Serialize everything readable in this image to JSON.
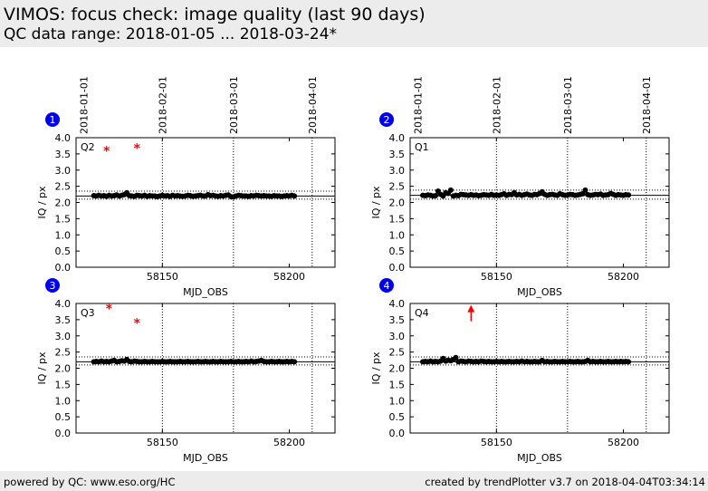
{
  "header": {
    "title": "VIMOS: focus check: image quality (last 90 days)",
    "subtitle": "QC data range: 2018-01-05 ... 2018-03-24*"
  },
  "footer": {
    "left": "powered by QC: www.eso.org/HC",
    "right": "created by trendPlotter v3.7 on 2018-04-04T03:34:14"
  },
  "colors": {
    "points": "#000000",
    "outliers": "#ff0000",
    "badge": "#0000ee",
    "background": "#ececec"
  },
  "chart_data": [
    {
      "type": "scatter",
      "badge": "1",
      "quadrant": "Q2",
      "xlabel": "MJD_OBS",
      "ylabel": "IQ / px",
      "xlim": [
        58116,
        58218
      ],
      "ylim": [
        0.0,
        4.0
      ],
      "xticks": [
        58150,
        58200
      ],
      "yticks": [
        "0.0",
        "0.5",
        "1.0",
        "1.5",
        "2.0",
        "2.5",
        "3.0",
        "3.5",
        "4.0"
      ],
      "date_ticks": [
        {
          "label": "2018-01-01",
          "mjd": 58119
        },
        {
          "label": "2018-02-01",
          "mjd": 58150
        },
        {
          "label": "2018-03-01",
          "mjd": 58178
        },
        {
          "label": "2018-04-01",
          "mjd": 58209
        }
      ],
      "date_lines": [
        58150,
        58178,
        58209
      ],
      "median": 2.2,
      "band": [
        2.1,
        2.35
      ],
      "show_upper_band": true,
      "series": [
        {
          "x": [
            58123,
            58124,
            58125,
            58126,
            58127,
            58128,
            58129,
            58130,
            58131,
            58132,
            58133,
            58134,
            58135,
            58136,
            58137,
            58138,
            58139,
            58140,
            58141,
            58142,
            58143,
            58144,
            58145,
            58146,
            58147,
            58148,
            58149,
            58150,
            58151,
            58152,
            58153,
            58154,
            58155,
            58156,
            58157,
            58158,
            58159,
            58160,
            58161,
            58162,
            58163,
            58164,
            58165,
            58166,
            58167,
            58168,
            58169,
            58170,
            58171,
            58172,
            58173,
            58174,
            58175,
            58176,
            58177,
            58178,
            58179,
            58180,
            58181,
            58182,
            58183,
            58184,
            58185,
            58186,
            58187,
            58188,
            58189,
            58190,
            58191,
            58192,
            58193,
            58194,
            58195,
            58196,
            58197,
            58198,
            58199,
            58200,
            58201,
            58202
          ],
          "y": [
            2.21,
            2.2,
            2.22,
            2.2,
            2.21,
            2.19,
            2.22,
            2.2,
            2.21,
            2.23,
            2.2,
            2.22,
            2.24,
            2.3,
            2.21,
            2.2,
            2.19,
            2.22,
            2.21,
            2.2,
            2.22,
            2.19,
            2.21,
            2.2,
            2.2,
            2.18,
            2.2,
            2.22,
            2.2,
            2.21,
            2.19,
            2.22,
            2.2,
            2.21,
            2.2,
            2.19,
            2.2,
            2.22,
            2.21,
            2.19,
            2.2,
            2.21,
            2.22,
            2.2,
            2.2,
            2.24,
            2.21,
            2.22,
            2.2,
            2.19,
            2.21,
            2.2,
            2.22,
            2.23,
            2.18,
            2.17,
            2.2,
            2.22,
            2.21,
            2.2,
            2.2,
            2.19,
            2.21,
            2.2,
            2.22,
            2.21,
            2.2,
            2.21,
            2.2,
            2.2,
            2.19,
            2.21,
            2.2,
            2.2,
            2.19,
            2.2,
            2.21,
            2.2,
            2.22,
            2.2
          ]
        }
      ],
      "outliers": [
        {
          "x": 58128,
          "y": 3.62
        },
        {
          "x": 58140,
          "y": 3.7
        }
      ],
      "arrows": []
    },
    {
      "type": "scatter",
      "badge": "2",
      "quadrant": "Q1",
      "xlabel": "MJD_OBS",
      "ylabel": "IQ / px",
      "xlim": [
        58116,
        58218
      ],
      "ylim": [
        0.0,
        4.0
      ],
      "xticks": [
        58150,
        58200
      ],
      "yticks": [
        "0.0",
        "0.5",
        "1.0",
        "1.5",
        "2.0",
        "2.5",
        "3.0",
        "3.5",
        "4.0"
      ],
      "date_ticks": [
        {
          "label": "2018-01-01",
          "mjd": 58119
        },
        {
          "label": "2018-02-01",
          "mjd": 58150
        },
        {
          "label": "2018-03-01",
          "mjd": 58178
        },
        {
          "label": "2018-04-01",
          "mjd": 58209
        }
      ],
      "date_lines": [
        58150,
        58178,
        58209
      ],
      "median": 2.22,
      "band": [
        2.1,
        2.38
      ],
      "show_upper_band": true,
      "series": [
        {
          "x": [
            58121,
            58122,
            58123,
            58124,
            58125,
            58126,
            58127,
            58128,
            58129,
            58130,
            58131,
            58132,
            58133,
            58134,
            58135,
            58136,
            58137,
            58138,
            58139,
            58140,
            58141,
            58142,
            58143,
            58144,
            58145,
            58146,
            58147,
            58148,
            58149,
            58150,
            58151,
            58152,
            58153,
            58154,
            58155,
            58156,
            58157,
            58158,
            58159,
            58160,
            58161,
            58162,
            58163,
            58164,
            58165,
            58166,
            58167,
            58168,
            58169,
            58170,
            58171,
            58172,
            58173,
            58174,
            58175,
            58176,
            58177,
            58178,
            58179,
            58180,
            58181,
            58182,
            58183,
            58184,
            58185,
            58186,
            58187,
            58188,
            58189,
            58190,
            58191,
            58192,
            58193,
            58194,
            58195,
            58196,
            58197,
            58198,
            58199,
            58200,
            58201,
            58202
          ],
          "y": [
            2.22,
            2.21,
            2.23,
            2.22,
            2.2,
            2.21,
            2.35,
            2.25,
            2.2,
            2.3,
            2.28,
            2.38,
            2.2,
            2.22,
            2.21,
            2.25,
            2.24,
            2.23,
            2.22,
            2.24,
            2.22,
            2.23,
            2.21,
            2.22,
            2.24,
            2.23,
            2.22,
            2.25,
            2.22,
            2.23,
            2.22,
            2.24,
            2.27,
            2.22,
            2.25,
            2.24,
            2.3,
            2.23,
            2.25,
            2.22,
            2.24,
            2.26,
            2.23,
            2.22,
            2.25,
            2.24,
            2.28,
            2.33,
            2.25,
            2.22,
            2.24,
            2.25,
            2.23,
            2.22,
            2.27,
            2.24,
            2.22,
            2.23,
            2.25,
            2.24,
            2.22,
            2.23,
            2.25,
            2.27,
            2.38,
            2.24,
            2.22,
            2.23,
            2.25,
            2.24,
            2.26,
            2.22,
            2.23,
            2.24,
            2.28,
            2.25,
            2.22,
            2.24,
            2.23,
            2.22,
            2.24,
            2.23
          ]
        }
      ],
      "outliers": [],
      "arrows": []
    },
    {
      "type": "scatter",
      "badge": "3",
      "quadrant": "Q3",
      "xlabel": "MJD_OBS",
      "ylabel": "IQ / px",
      "xlim": [
        58116,
        58218
      ],
      "ylim": [
        0.0,
        4.0
      ],
      "xticks": [
        58150,
        58200
      ],
      "yticks": [
        "0.0",
        "0.5",
        "1.0",
        "1.5",
        "2.0",
        "2.5",
        "3.0",
        "3.5",
        "4.0"
      ],
      "date_ticks": [],
      "date_lines": [
        58150,
        58178,
        58209
      ],
      "median": 2.2,
      "band": [
        2.1,
        2.35
      ],
      "show_upper_band": true,
      "series": [
        {
          "x": [
            58123,
            58124,
            58125,
            58126,
            58127,
            58128,
            58129,
            58130,
            58131,
            58132,
            58133,
            58134,
            58135,
            58136,
            58137,
            58138,
            58139,
            58140,
            58141,
            58142,
            58143,
            58144,
            58145,
            58146,
            58147,
            58148,
            58149,
            58150,
            58151,
            58152,
            58153,
            58154,
            58155,
            58156,
            58157,
            58158,
            58159,
            58160,
            58161,
            58162,
            58163,
            58164,
            58165,
            58166,
            58167,
            58168,
            58169,
            58170,
            58171,
            58172,
            58173,
            58174,
            58175,
            58176,
            58177,
            58178,
            58179,
            58180,
            58181,
            58182,
            58183,
            58184,
            58185,
            58186,
            58187,
            58188,
            58189,
            58190,
            58191,
            58192,
            58193,
            58194,
            58195,
            58196,
            58197,
            58198,
            58199,
            58200,
            58201,
            58202
          ],
          "y": [
            2.2,
            2.21,
            2.2,
            2.22,
            2.2,
            2.21,
            2.2,
            2.22,
            2.24,
            2.2,
            2.21,
            2.23,
            2.22,
            2.27,
            2.21,
            2.2,
            2.22,
            2.21,
            2.2,
            2.2,
            2.21,
            2.2,
            2.2,
            2.21,
            2.2,
            2.2,
            2.2,
            2.21,
            2.2,
            2.2,
            2.21,
            2.2,
            2.2,
            2.2,
            2.21,
            2.2,
            2.2,
            2.21,
            2.2,
            2.2,
            2.2,
            2.21,
            2.2,
            2.2,
            2.21,
            2.2,
            2.2,
            2.21,
            2.2,
            2.2,
            2.21,
            2.2,
            2.2,
            2.2,
            2.21,
            2.2,
            2.2,
            2.21,
            2.2,
            2.2,
            2.21,
            2.2,
            2.22,
            2.2,
            2.21,
            2.22,
            2.24,
            2.21,
            2.2,
            2.2,
            2.21,
            2.2,
            2.2,
            2.21,
            2.2,
            2.2,
            2.21,
            2.2,
            2.21,
            2.2
          ]
        }
      ],
      "outliers": [
        {
          "x": 58129,
          "y": 3.88
        },
        {
          "x": 58140,
          "y": 3.42
        }
      ],
      "arrows": []
    },
    {
      "type": "scatter",
      "badge": "4",
      "quadrant": "Q4",
      "xlabel": "MJD_OBS",
      "ylabel": "IQ / px",
      "xlim": [
        58116,
        58218
      ],
      "ylim": [
        0.0,
        4.0
      ],
      "xticks": [
        58150,
        58200
      ],
      "yticks": [
        "0.0",
        "0.5",
        "1.0",
        "1.5",
        "2.0",
        "2.5",
        "3.0",
        "3.5",
        "4.0"
      ],
      "date_ticks": [],
      "date_lines": [
        58150,
        58178,
        58209
      ],
      "median": 2.2,
      "band": [
        2.1,
        2.35
      ],
      "show_upper_band": true,
      "series": [
        {
          "x": [
            58121,
            58122,
            58123,
            58124,
            58125,
            58126,
            58127,
            58128,
            58129,
            58130,
            58131,
            58132,
            58133,
            58134,
            58135,
            58136,
            58137,
            58138,
            58139,
            58140,
            58141,
            58142,
            58143,
            58144,
            58145,
            58146,
            58147,
            58148,
            58149,
            58150,
            58151,
            58152,
            58153,
            58154,
            58155,
            58156,
            58157,
            58158,
            58159,
            58160,
            58161,
            58162,
            58163,
            58164,
            58165,
            58166,
            58167,
            58168,
            58169,
            58170,
            58171,
            58172,
            58173,
            58174,
            58175,
            58176,
            58177,
            58178,
            58179,
            58180,
            58181,
            58182,
            58183,
            58184,
            58185,
            58186,
            58187,
            58188,
            58189,
            58190,
            58191,
            58192,
            58193,
            58194,
            58195,
            58196,
            58197,
            58198,
            58199,
            58200,
            58201,
            58202
          ],
          "y": [
            2.2,
            2.21,
            2.2,
            2.22,
            2.2,
            2.21,
            2.2,
            2.22,
            2.3,
            2.22,
            2.25,
            2.23,
            2.27,
            2.33,
            2.2,
            2.22,
            2.21,
            2.2,
            2.22,
            2.21,
            2.2,
            2.21,
            2.2,
            2.22,
            2.21,
            2.2,
            2.21,
            2.2,
            2.2,
            2.21,
            2.2,
            2.21,
            2.2,
            2.2,
            2.21,
            2.2,
            2.2,
            2.21,
            2.2,
            2.22,
            2.2,
            2.21,
            2.2,
            2.2,
            2.21,
            2.2,
            2.2,
            2.24,
            2.2,
            2.21,
            2.2,
            2.2,
            2.21,
            2.2,
            2.2,
            2.21,
            2.2,
            2.2,
            2.21,
            2.2,
            2.2,
            2.21,
            2.2,
            2.2,
            2.21,
            2.24,
            2.2,
            2.21,
            2.2,
            2.2,
            2.21,
            2.2,
            2.2,
            2.21,
            2.2,
            2.2,
            2.21,
            2.2,
            2.21,
            2.2,
            2.21,
            2.2
          ]
        }
      ],
      "outliers": [],
      "arrows": [
        {
          "x": 58140,
          "y_from": 3.45,
          "y_to": 3.9
        }
      ]
    }
  ]
}
